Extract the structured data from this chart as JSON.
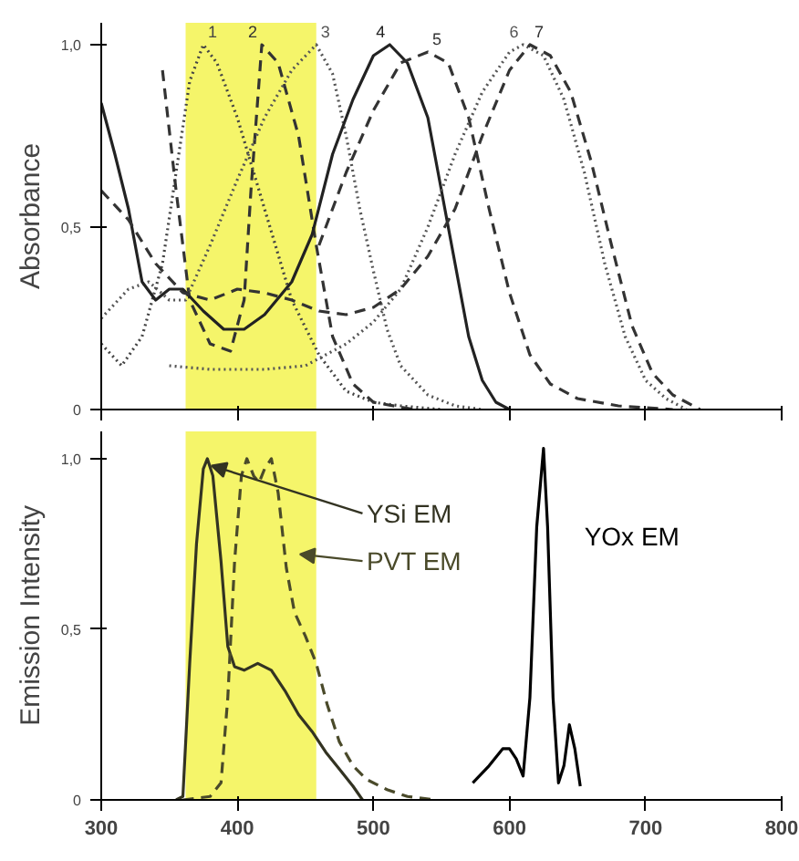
{
  "chart_data": [
    {
      "type": "line",
      "ylabel": "Absorbance",
      "xlim": [
        300,
        800
      ],
      "ylim": [
        0,
        1.06
      ],
      "xticks": [
        {
          "value": 300,
          "label": null
        },
        {
          "value": 400,
          "label": null
        },
        {
          "value": 500,
          "label": null
        },
        {
          "value": 600,
          "label": null
        },
        {
          "value": 700,
          "label": null
        },
        {
          "value": 800,
          "label": null
        }
      ],
      "yticks": [
        {
          "value": 0,
          "label": "0"
        },
        {
          "value": 0.5,
          "label": "0,5"
        },
        {
          "value": 1,
          "label": "1,0"
        }
      ],
      "tick_labels": "y",
      "grid": false,
      "marker": "none",
      "bands": [
        {
          "axis": "x",
          "from": 362,
          "to": 458,
          "color": "#f5f56a"
        }
      ],
      "series": [
        {
          "name": "1",
          "color": "#444444",
          "line_style": "dotted",
          "x": [
            300,
            315,
            330,
            345,
            355,
            365,
            375,
            385,
            400,
            420,
            440,
            460,
            480,
            500,
            520,
            550
          ],
          "values": [
            0.18,
            0.12,
            0.2,
            0.4,
            0.65,
            0.9,
            1.0,
            0.95,
            0.8,
            0.55,
            0.3,
            0.15,
            0.05,
            0.02,
            0.01,
            0
          ]
        },
        {
          "name": "2",
          "color": "#333333",
          "line_style": "dashed",
          "x": [
            345,
            355,
            365,
            380,
            395,
            405,
            410,
            418,
            430,
            445,
            458,
            470,
            485,
            500,
            530
          ],
          "values": [
            0.93,
            0.6,
            0.3,
            0.18,
            0.16,
            0.3,
            0.6,
            1.0,
            0.95,
            0.75,
            0.45,
            0.2,
            0.07,
            0.02,
            0
          ]
        },
        {
          "name": "3",
          "color": "#555555",
          "line_style": "dotted",
          "x": [
            300,
            320,
            335,
            350,
            362,
            380,
            400,
            420,
            440,
            458,
            470,
            480,
            490,
            500,
            510,
            520,
            540,
            560,
            580
          ],
          "values": [
            0.25,
            0.33,
            0.35,
            0.3,
            0.3,
            0.45,
            0.63,
            0.8,
            0.93,
            1.0,
            0.92,
            0.75,
            0.55,
            0.38,
            0.22,
            0.12,
            0.04,
            0.01,
            0
          ]
        },
        {
          "name": "4",
          "color": "#222222",
          "line_style": "solid",
          "x": [
            300,
            310,
            320,
            330,
            340,
            350,
            360,
            375,
            390,
            405,
            420,
            440,
            455,
            470,
            485,
            500,
            512,
            525,
            540,
            550,
            560,
            570,
            580,
            590,
            600
          ],
          "values": [
            0.84,
            0.7,
            0.55,
            0.35,
            0.3,
            0.33,
            0.33,
            0.27,
            0.22,
            0.22,
            0.26,
            0.35,
            0.48,
            0.7,
            0.85,
            0.97,
            1.0,
            0.95,
            0.8,
            0.6,
            0.4,
            0.2,
            0.08,
            0.02,
            0
          ]
        },
        {
          "name": "5",
          "color": "#333333",
          "line_style": "dashed",
          "x": [
            460,
            480,
            500,
            520,
            540,
            555,
            570,
            585,
            600,
            615,
            630,
            650,
            680,
            720
          ],
          "values": [
            0.45,
            0.65,
            0.82,
            0.95,
            0.98,
            0.95,
            0.8,
            0.55,
            0.32,
            0.15,
            0.07,
            0.03,
            0.01,
            0
          ]
        },
        {
          "name": "6",
          "color": "#555555",
          "line_style": "dotted",
          "x": [
            350,
            380,
            420,
            450,
            480,
            500,
            520,
            540,
            560,
            580,
            600,
            610,
            625,
            640,
            655,
            670,
            685,
            700,
            715,
            730
          ],
          "values": [
            0.12,
            0.11,
            0.11,
            0.12,
            0.18,
            0.24,
            0.33,
            0.5,
            0.7,
            0.87,
            0.98,
            1.0,
            0.97,
            0.85,
            0.65,
            0.4,
            0.2,
            0.08,
            0.03,
            0
          ]
        },
        {
          "name": "7",
          "color": "#333333",
          "line_style": "dashed",
          "x": [
            300,
            320,
            340,
            360,
            380,
            400,
            420,
            440,
            460,
            480,
            500,
            520,
            540,
            560,
            580,
            600,
            615,
            630,
            645,
            660,
            675,
            690,
            705,
            720,
            740
          ],
          "values": [
            0.6,
            0.52,
            0.4,
            0.32,
            0.3,
            0.33,
            0.32,
            0.3,
            0.27,
            0.26,
            0.28,
            0.33,
            0.42,
            0.55,
            0.75,
            0.93,
            1.0,
            0.97,
            0.87,
            0.68,
            0.45,
            0.23,
            0.1,
            0.04,
            0
          ]
        }
      ]
    },
    {
      "type": "line",
      "ylabel": "Emission Intensity",
      "xlim": [
        300,
        800
      ],
      "ylim": [
        0,
        1.08
      ],
      "xticks": [
        300,
        400,
        500,
        600,
        700,
        800
      ],
      "yticks": [
        {
          "value": 0,
          "label": "0"
        },
        {
          "value": 0.5,
          "label": "0,5"
        },
        {
          "value": 1,
          "label": "1,0"
        }
      ],
      "grid": false,
      "marker": "none",
      "bands": [
        {
          "axis": "x",
          "from": 362,
          "to": 458,
          "color": "#f5f56a"
        }
      ],
      "series": [
        {
          "name": "YSi  EM",
          "color": "#333322",
          "line_style": "solid",
          "x": [
            355,
            360,
            365,
            370,
            375,
            378,
            382,
            388,
            393,
            398,
            405,
            415,
            425,
            435,
            445,
            455,
            465,
            475,
            485,
            492
          ],
          "values": [
            0,
            0.01,
            0.4,
            0.75,
            0.97,
            1.0,
            0.95,
            0.7,
            0.45,
            0.39,
            0.38,
            0.4,
            0.38,
            0.32,
            0.25,
            0.2,
            0.14,
            0.09,
            0.04,
            0
          ]
        },
        {
          "name": "PVT EM",
          "color": "#4a4a2a",
          "line_style": "dashed",
          "x": [
            360,
            380,
            388,
            393,
            398,
            403,
            407,
            412,
            416,
            420,
            425,
            430,
            436,
            442,
            450,
            458,
            466,
            475,
            485,
            495,
            510,
            525,
            545
          ],
          "values": [
            0,
            0.01,
            0.05,
            0.3,
            0.7,
            0.95,
            1.0,
            0.95,
            0.93,
            0.97,
            1.0,
            0.9,
            0.68,
            0.55,
            0.48,
            0.4,
            0.28,
            0.17,
            0.1,
            0.06,
            0.03,
            0.01,
            0
          ]
        },
        {
          "name": "YOx EM",
          "color": "#000000",
          "line_style": "solid",
          "x": [
            573,
            585,
            595,
            600,
            605,
            610,
            615,
            620,
            625,
            628,
            632,
            636,
            640,
            644,
            648,
            652
          ],
          "values": [
            0.05,
            0.1,
            0.15,
            0.15,
            0.12,
            0.07,
            0.3,
            0.8,
            1.03,
            0.8,
            0.3,
            0.05,
            0.1,
            0.22,
            0.15,
            0.04
          ]
        }
      ]
    }
  ]
}
